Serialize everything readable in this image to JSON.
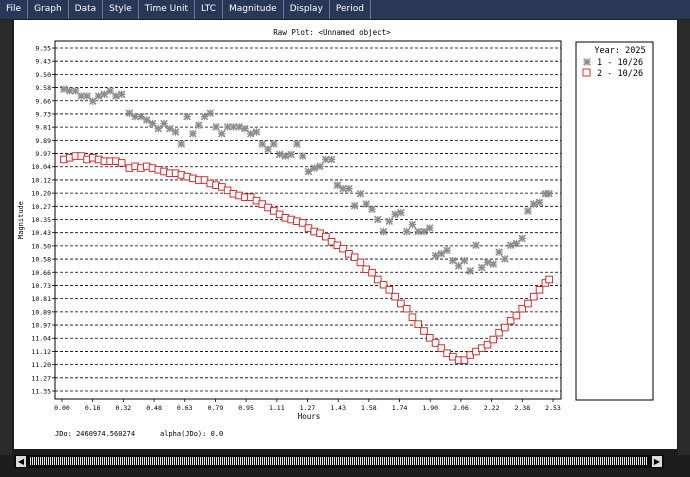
{
  "menu": [
    "File",
    "Graph",
    "Data",
    "Style",
    "Time Unit",
    "LTC",
    "Magnitude",
    "Display",
    "Period"
  ],
  "plot": {
    "title": "Raw Plot: <Unnamed object>",
    "xlabel": "Hours",
    "ylabel": "Magnitude",
    "jdo_text": "JDo: 2460974.560274",
    "alpha_text": "alpha(JDo): 0.0"
  },
  "legend": {
    "title": "Year: 2025",
    "entries": [
      "1 - 10/26",
      "2 - 10/26"
    ]
  },
  "colors": {
    "series1": "#8c8c8c",
    "series2": "#c83232",
    "menubar": "#283856"
  },
  "chart_data": {
    "type": "scatter",
    "title": "Raw Plot: <Unnamed object>",
    "xlabel": "Hours",
    "ylabel": "Magnitude",
    "xlim": [
      0.0,
      2.55
    ],
    "ylim": [
      9.35,
      11.35
    ],
    "y_inverted": true,
    "grid": true,
    "legend_position": "outside-right",
    "xticks": [
      "0.00",
      "0.16",
      "0.32",
      "0.48",
      "0.63",
      "0.79",
      "0.95",
      "1.11",
      "1.27",
      "1.43",
      "1.58",
      "1.74",
      "1.90",
      "2.06",
      "2.22",
      "2.38",
      "2.53"
    ],
    "yticks": [
      "9.35",
      "9.43",
      "9.50",
      "9.58",
      "9.66",
      "9.73",
      "9.81",
      "9.89",
      "9.97",
      "10.04",
      "10.12",
      "10.20",
      "10.27",
      "10.35",
      "10.43",
      "10.50",
      "10.58",
      "10.66",
      "10.73",
      "10.81",
      "10.89",
      "10.97",
      "11.04",
      "11.12",
      "11.20",
      "11.27",
      "11.35"
    ],
    "series": [
      {
        "name": "1 - 10/26",
        "marker": "star",
        "x": [
          0.01,
          0.04,
          0.07,
          0.1,
          0.13,
          0.16,
          0.19,
          0.22,
          0.25,
          0.28,
          0.31,
          0.35,
          0.38,
          0.41,
          0.44,
          0.47,
          0.5,
          0.53,
          0.56,
          0.59,
          0.62,
          0.65,
          0.68,
          0.71,
          0.74,
          0.77,
          0.8,
          0.83,
          0.86,
          0.89,
          0.92,
          0.95,
          0.98,
          1.01,
          1.04,
          1.07,
          1.1,
          1.13,
          1.16,
          1.19,
          1.22,
          1.25,
          1.28,
          1.31,
          1.34,
          1.37,
          1.4,
          1.43,
          1.46,
          1.49,
          1.52,
          1.55,
          1.58,
          1.61,
          1.64,
          1.67,
          1.7,
          1.73,
          1.76,
          1.79,
          1.82,
          1.85,
          1.88,
          1.91,
          1.94,
          1.97,
          2.0,
          2.03,
          2.06,
          2.09,
          2.12,
          2.15,
          2.18,
          2.21,
          2.24,
          2.27,
          2.3,
          2.33,
          2.36,
          2.39,
          2.42,
          2.45,
          2.48,
          2.51,
          2.53
        ],
        "y": [
          9.59,
          9.6,
          9.6,
          9.63,
          9.63,
          9.66,
          9.63,
          9.62,
          9.6,
          9.63,
          9.62,
          9.73,
          9.75,
          9.75,
          9.77,
          9.79,
          9.82,
          9.79,
          9.82,
          9.84,
          9.91,
          9.75,
          9.85,
          9.8,
          9.75,
          9.73,
          9.81,
          9.85,
          9.81,
          9.81,
          9.81,
          9.82,
          9.85,
          9.84,
          9.91,
          9.94,
          9.91,
          9.97,
          9.98,
          9.97,
          9.91,
          9.98,
          10.07,
          10.05,
          10.04,
          10.0,
          10.0,
          10.15,
          10.17,
          10.17,
          10.27,
          10.2,
          10.26,
          10.29,
          10.35,
          10.42,
          10.36,
          10.32,
          10.31,
          10.42,
          10.38,
          10.42,
          10.42,
          10.4,
          10.56,
          10.55,
          10.53,
          10.59,
          10.62,
          10.59,
          10.65,
          10.5,
          10.63,
          10.6,
          10.61,
          10.54,
          10.58,
          10.5,
          10.49,
          10.46,
          10.3,
          10.26,
          10.25,
          10.2,
          10.2
        ]
      },
      {
        "name": "2 - 10/26",
        "marker": "square",
        "x": [
          0.01,
          0.04,
          0.07,
          0.1,
          0.13,
          0.16,
          0.19,
          0.22,
          0.25,
          0.28,
          0.31,
          0.35,
          0.38,
          0.41,
          0.44,
          0.47,
          0.5,
          0.53,
          0.56,
          0.59,
          0.62,
          0.65,
          0.68,
          0.71,
          0.74,
          0.77,
          0.8,
          0.83,
          0.86,
          0.89,
          0.92,
          0.95,
          0.98,
          1.01,
          1.04,
          1.07,
          1.1,
          1.13,
          1.16,
          1.19,
          1.22,
          1.25,
          1.28,
          1.31,
          1.34,
          1.37,
          1.4,
          1.43,
          1.46,
          1.49,
          1.52,
          1.55,
          1.58,
          1.61,
          1.64,
          1.67,
          1.7,
          1.73,
          1.76,
          1.79,
          1.82,
          1.85,
          1.88,
          1.91,
          1.94,
          1.97,
          2.0,
          2.03,
          2.06,
          2.09,
          2.12,
          2.15,
          2.18,
          2.21,
          2.24,
          2.27,
          2.3,
          2.33,
          2.36,
          2.39,
          2.42,
          2.45,
          2.48,
          2.51,
          2.53
        ],
        "y": [
          10.0,
          9.99,
          9.98,
          9.98,
          10.0,
          9.99,
          10.0,
          10.01,
          10.01,
          10.01,
          10.02,
          10.05,
          10.04,
          10.05,
          10.04,
          10.05,
          10.06,
          10.07,
          10.08,
          10.08,
          10.09,
          10.1,
          10.11,
          10.12,
          10.12,
          10.14,
          10.15,
          10.16,
          10.18,
          10.2,
          10.21,
          10.22,
          10.22,
          10.24,
          10.26,
          10.28,
          10.3,
          10.32,
          10.34,
          10.35,
          10.36,
          10.37,
          10.4,
          10.42,
          10.43,
          10.45,
          10.48,
          10.5,
          10.52,
          10.55,
          10.57,
          10.6,
          10.64,
          10.66,
          10.7,
          10.73,
          10.76,
          10.8,
          10.84,
          10.87,
          10.92,
          10.96,
          11.0,
          11.04,
          11.07,
          11.1,
          11.13,
          11.15,
          11.17,
          11.17,
          11.14,
          11.12,
          11.1,
          11.08,
          11.05,
          11.01,
          10.98,
          10.94,
          10.91,
          10.87,
          10.84,
          10.8,
          10.76,
          10.72,
          10.7
        ]
      }
    ]
  }
}
